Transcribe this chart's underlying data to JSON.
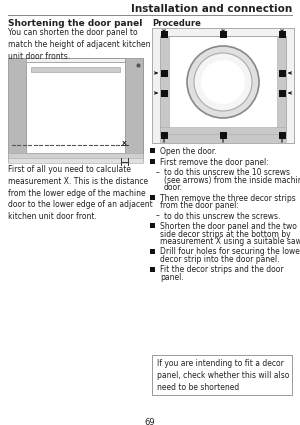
{
  "title": "Installation and connection",
  "section_title": "Shortening the door panel",
  "procedure_title": "Procedure",
  "left_body": "You can shorten the door panel to\nmatch the height of adjacent kitchen\nunit door fronts.",
  "left_caption": "First of all you need to calculate\nmeasurement X. This is the distance\nfrom the lower edge of the machine\ndoor to the lower edge of an adjacent\nkitchen unit door front.",
  "note_text": "If you are intending to fit a decor\npanel, check whether this will also\nneed to be shortened",
  "page_number": "69",
  "bg_color": "#ffffff",
  "text_color": "#222222",
  "header_line_color": "#888888"
}
